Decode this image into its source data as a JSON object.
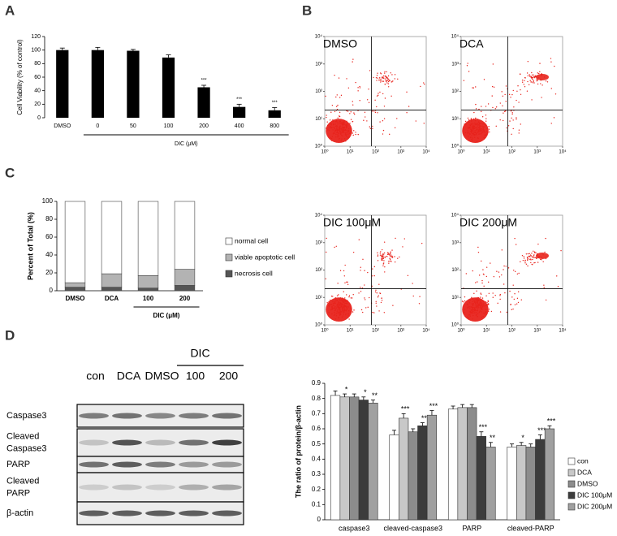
{
  "panel_labels": [
    "A",
    "B",
    "C",
    "D"
  ],
  "chart_data": [
    {
      "type": "bar",
      "ylabel": "Cell Viability (% of control)",
      "xlabel": "DIC (μM)",
      "categories": [
        "DMSO",
        "0",
        "50",
        "100",
        "200",
        "400",
        "800"
      ],
      "values": [
        100,
        100,
        99,
        89,
        45,
        16,
        11
      ],
      "errors": [
        3,
        4,
        2,
        4,
        3,
        4,
        4
      ],
      "significance": [
        null,
        null,
        null,
        null,
        "***",
        "***",
        "***"
      ],
      "color": "#000000",
      "ylim": [
        0,
        120
      ],
      "yticks": [
        0,
        20,
        40,
        60,
        80,
        100,
        120
      ]
    },
    {
      "type": "flow",
      "title": "DMSO",
      "log": true,
      "color": "#e8231c",
      "xlim": [
        1,
        10000
      ],
      "ylim": [
        1,
        10000
      ],
      "xticks": [
        {
          "value": 1,
          "label": "10⁰"
        },
        {
          "value": 10,
          "label": "10¹"
        },
        {
          "value": 100,
          "label": "10²"
        },
        {
          "value": 1000,
          "label": "10³"
        },
        {
          "value": 10000,
          "label": "10⁴"
        }
      ],
      "yticks": [
        {
          "value": 1,
          "label": "10⁰"
        },
        {
          "value": 10,
          "label": "10¹"
        },
        {
          "value": 100,
          "label": "10²"
        },
        {
          "value": 1000,
          "label": "10³"
        },
        {
          "value": 10000,
          "label": "10⁴"
        }
      ]
    },
    {
      "type": "flow",
      "title": "DCA",
      "log": true,
      "color": "#e8231c",
      "xlim": [
        1,
        10000
      ],
      "ylim": [
        1,
        10000
      ],
      "xticks": [
        {
          "value": 1,
          "label": "10⁰"
        },
        {
          "value": 10,
          "label": "10¹"
        },
        {
          "value": 100,
          "label": "10²"
        },
        {
          "value": 1000,
          "label": "10³"
        },
        {
          "value": 10000,
          "label": "10⁴"
        }
      ],
      "yticks": [
        {
          "value": 1,
          "label": "10⁰"
        },
        {
          "value": 10,
          "label": "10¹"
        },
        {
          "value": 100,
          "label": "10²"
        },
        {
          "value": 1000,
          "label": "10³"
        },
        {
          "value": 10000,
          "label": "10⁴"
        }
      ]
    },
    {
      "type": "flow",
      "title": "DIC 100μM",
      "log": true,
      "color": "#e8231c",
      "xlim": [
        1,
        10000
      ],
      "ylim": [
        1,
        10000
      ],
      "xticks": [
        {
          "value": 1,
          "label": "10⁰"
        },
        {
          "value": 10,
          "label": "10¹"
        },
        {
          "value": 100,
          "label": "10²"
        },
        {
          "value": 1000,
          "label": "10³"
        },
        {
          "value": 10000,
          "label": "10⁴"
        }
      ],
      "yticks": [
        {
          "value": 1,
          "label": "10⁰"
        },
        {
          "value": 10,
          "label": "10¹"
        },
        {
          "value": 100,
          "label": "10²"
        },
        {
          "value": 1000,
          "label": "10³"
        },
        {
          "value": 10000,
          "label": "10⁴"
        }
      ]
    },
    {
      "type": "flow",
      "title": "DIC 200μM",
      "log": true,
      "color": "#e8231c",
      "xlim": [
        1,
        10000
      ],
      "ylim": [
        1,
        10000
      ],
      "xticks": [
        {
          "value": 1,
          "label": "10⁰"
        },
        {
          "value": 10,
          "label": "10¹"
        },
        {
          "value": 100,
          "label": "10²"
        },
        {
          "value": 1000,
          "label": "10³"
        },
        {
          "value": 10000,
          "label": "10⁴"
        }
      ],
      "yticks": [
        {
          "value": 1,
          "label": "10⁰"
        },
        {
          "value": 10,
          "label": "10¹"
        },
        {
          "value": 100,
          "label": "10²"
        },
        {
          "value": 1000,
          "label": "10³"
        },
        {
          "value": 10000,
          "label": "10⁴"
        }
      ]
    },
    {
      "type": "stacked_bar",
      "ylabel": "Percent of Total (%)",
      "xlabel": "DIC (μM)",
      "categories": [
        "DMSO",
        "DCA",
        "100",
        "200"
      ],
      "series": [
        {
          "name": "necrosis cell",
          "color": "#555555",
          "values": [
            4,
            4,
            3,
            6
          ]
        },
        {
          "name": "viable apoptotic cell",
          "color": "#b3b3b3",
          "values": [
            5,
            15,
            14,
            18
          ]
        },
        {
          "name": "normal cell",
          "color": "#ffffff",
          "values": [
            91,
            81,
            83,
            76
          ]
        }
      ],
      "ylim": [
        0,
        100
      ],
      "yticks": [
        0,
        20,
        40,
        60,
        80,
        100
      ],
      "legend": "right"
    },
    {
      "type": "grouped_bar",
      "ylabel": "The ratio of protein/β-actin",
      "categories": [
        "caspase3",
        "cleaved-caspase3",
        "PARP",
        "cleaved-PARP"
      ],
      "series": [
        {
          "name": "con",
          "color": "#ffffff",
          "values": [
            0.82,
            0.56,
            0.73,
            0.48
          ],
          "errors": [
            0.03,
            0.03,
            0.02,
            0.02
          ],
          "significance": [
            null,
            null,
            null,
            null
          ]
        },
        {
          "name": "DCA",
          "color": "#c8c8c8",
          "values": [
            0.81,
            0.67,
            0.74,
            0.49
          ],
          "errors": [
            0.02,
            0.03,
            0.02,
            0.02
          ],
          "significance": [
            "*",
            "***",
            null,
            "*"
          ]
        },
        {
          "name": "DMSO",
          "color": "#8c8c8c",
          "values": [
            0.81,
            0.58,
            0.74,
            0.48
          ],
          "errors": [
            0.02,
            0.02,
            0.02,
            0.02
          ],
          "significance": [
            null,
            null,
            null,
            null
          ]
        },
        {
          "name": "DIC 100μM",
          "color": "#3c3c3c",
          "values": [
            0.79,
            0.62,
            0.55,
            0.53
          ],
          "errors": [
            0.02,
            0.02,
            0.03,
            0.03
          ],
          "significance": [
            "*",
            "**",
            "***",
            "***"
          ]
        },
        {
          "name": "DIC 200μM",
          "color": "#a0a0a0",
          "values": [
            0.77,
            0.69,
            0.48,
            0.6
          ],
          "errors": [
            0.02,
            0.03,
            0.03,
            0.02
          ],
          "significance": [
            "**",
            "***",
            "**",
            "***"
          ]
        }
      ],
      "ylim": [
        0,
        0.9
      ],
      "yticks": [
        0,
        0.1,
        0.2,
        0.3,
        0.4,
        0.5,
        0.6,
        0.7,
        0.8,
        0.9
      ],
      "legend": "right"
    }
  ],
  "blot": {
    "group_label": "DIC",
    "lanes": [
      "con",
      "DCA",
      "DMSO",
      "100",
      "200"
    ],
    "rows": [
      {
        "label": [
          "Caspase3"
        ]
      },
      {
        "label": [
          "Cleaved",
          "Caspase3"
        ]
      },
      {
        "label": [
          "PARP"
        ]
      },
      {
        "label": [
          "Cleaved",
          "PARP"
        ]
      },
      {
        "label": [
          "β-actin"
        ]
      }
    ]
  }
}
